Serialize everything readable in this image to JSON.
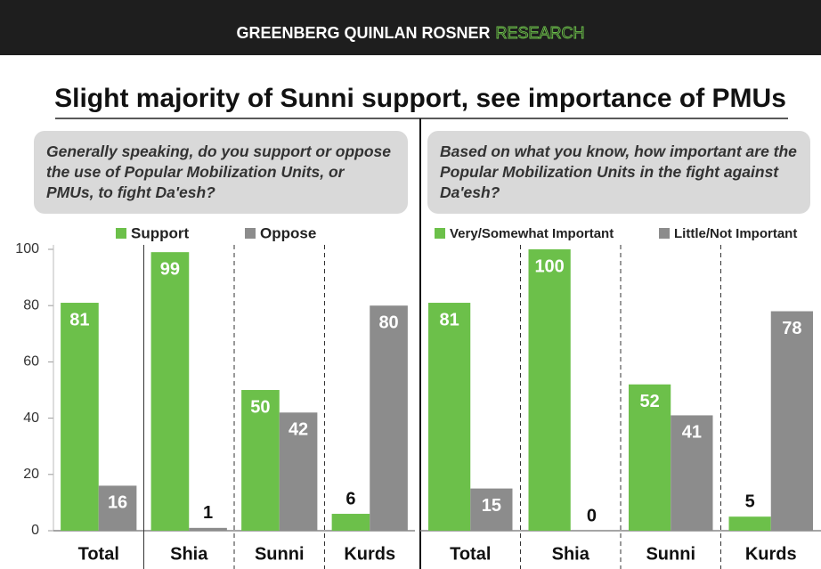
{
  "header": {
    "brand": "GREENBERG QUINLAN ROSNER",
    "brand_accent": "RESEARCH"
  },
  "title": "Slight majority of Sunni support, see importance of PMUs",
  "chart_data": [
    {
      "type": "bar",
      "subtitle": "Generally speaking, do you support or oppose the use of Popular Mobilization Units, or PMUs, to fight Da'esh?",
      "categories": [
        "Total",
        "Shia",
        "Sunni",
        "Kurds"
      ],
      "series": [
        {
          "name": "Support",
          "color": "#6cc04a",
          "values": [
            81,
            99,
            50,
            6
          ]
        },
        {
          "name": "Oppose",
          "color": "#8c8c8c",
          "values": [
            16,
            1,
            42,
            80
          ]
        }
      ],
      "ylim": [
        0,
        100
      ],
      "yticks": [
        0,
        20,
        40,
        60,
        80,
        100
      ]
    },
    {
      "type": "bar",
      "subtitle": "Based on what you know, how important are the Popular Mobilization Units in the fight against Da'esh?",
      "categories": [
        "Total",
        "Shia",
        "Sunni",
        "Kurds"
      ],
      "series": [
        {
          "name": "Very/Somewhat Important",
          "color": "#6cc04a",
          "values": [
            81,
            100,
            52,
            5
          ]
        },
        {
          "name": "Little/Not Important",
          "color": "#8c8c8c",
          "values": [
            15,
            0,
            41,
            78
          ]
        }
      ],
      "ylim": [
        0,
        100
      ]
    }
  ]
}
